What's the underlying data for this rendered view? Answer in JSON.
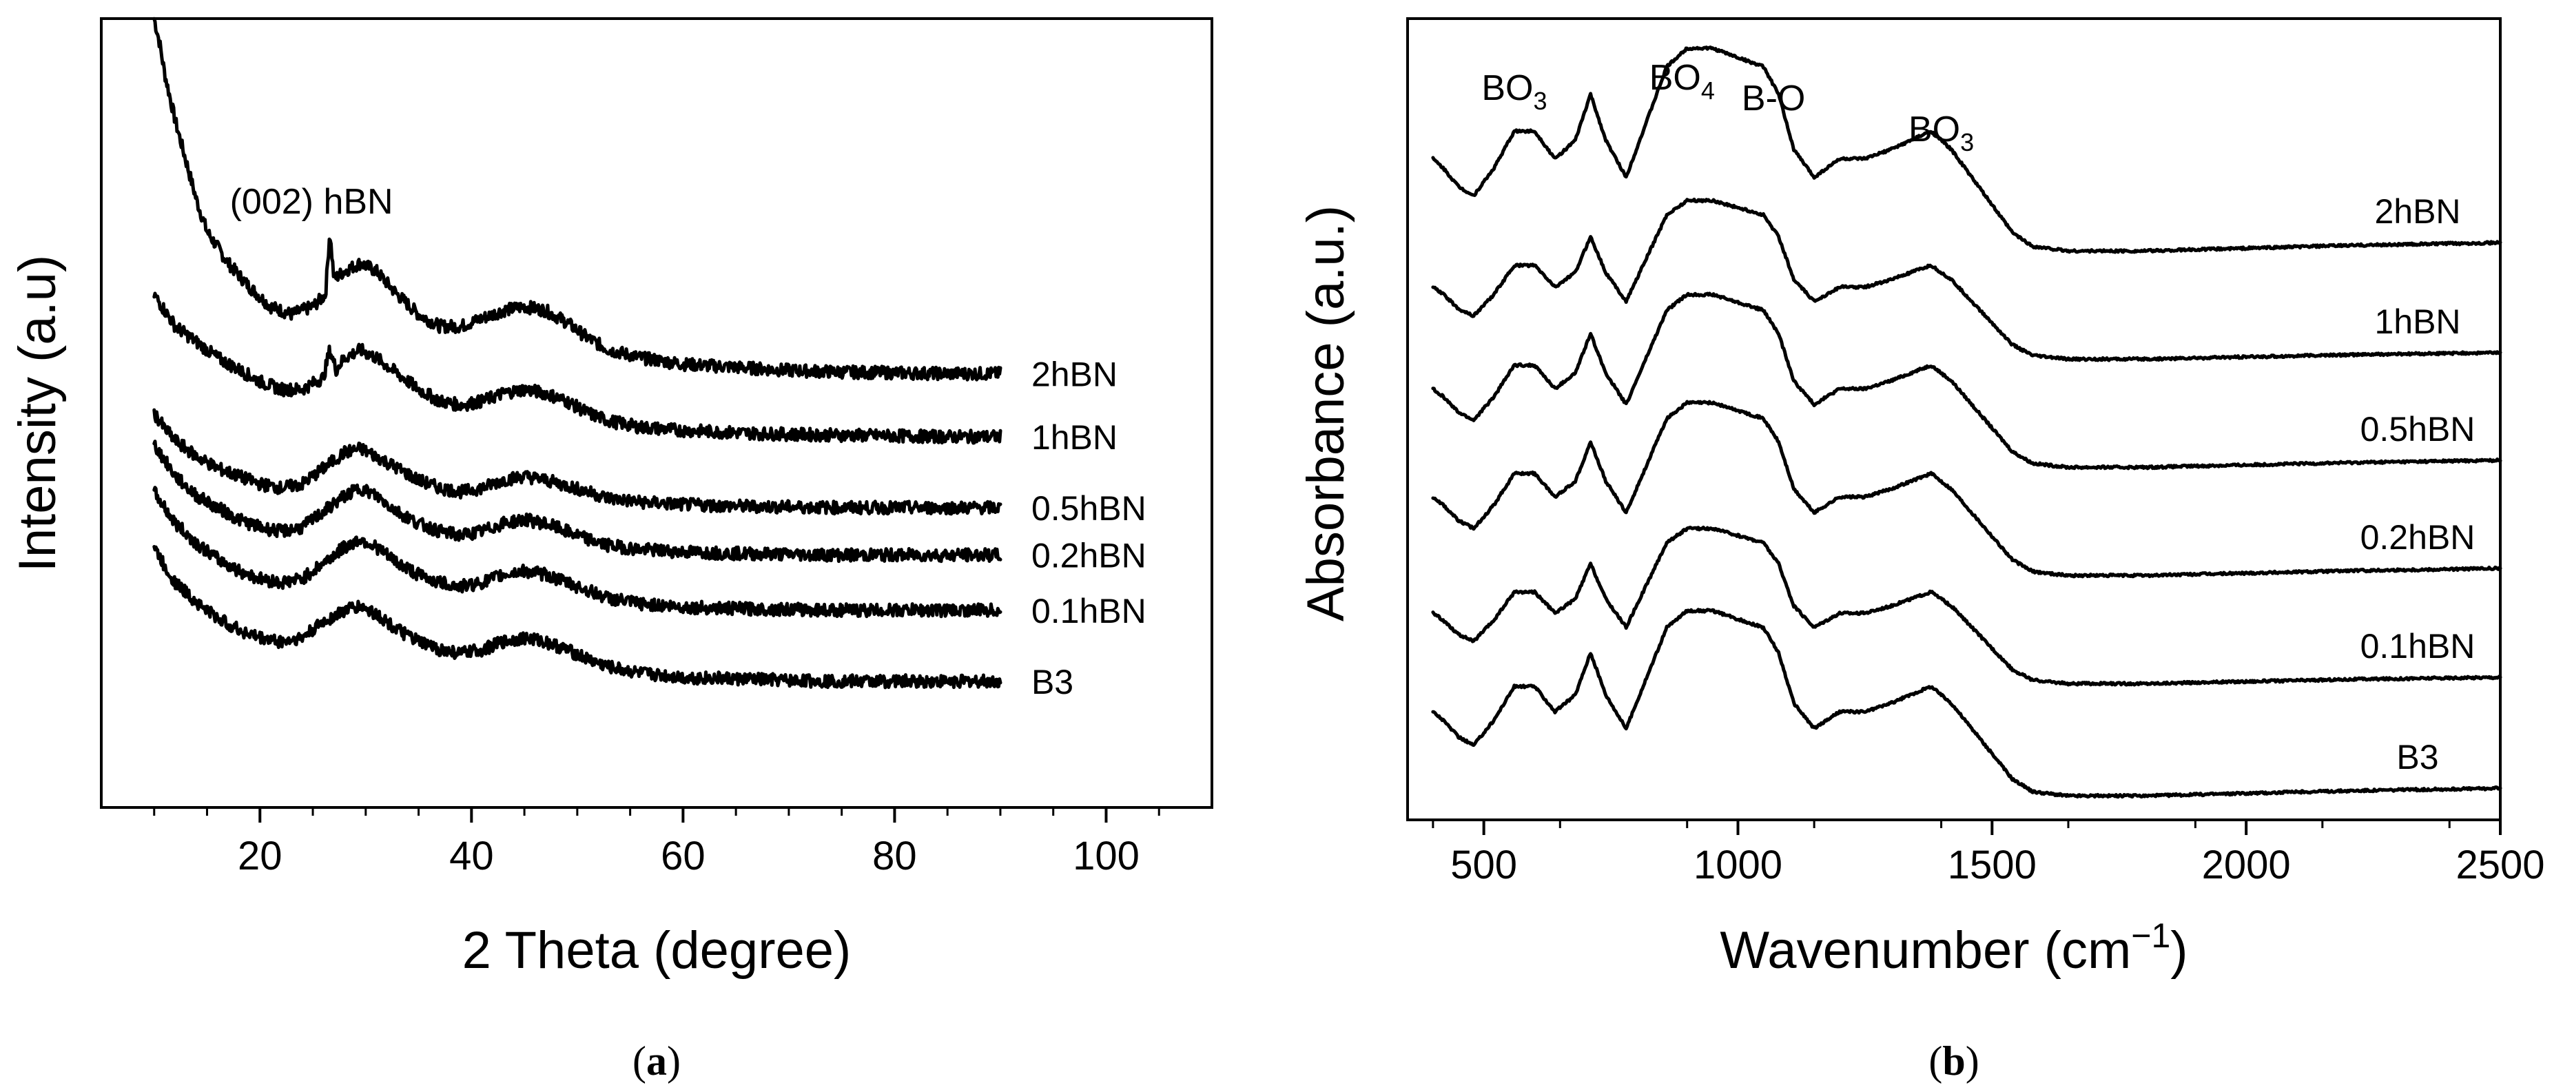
{
  "chart_data": [
    {
      "type": "line",
      "panel_label": "a",
      "xlabel": "2 Theta (degree)",
      "ylabel": "Intensity (a.u)",
      "xlim": [
        5,
        110
      ],
      "xticks": [
        20,
        40,
        60,
        80,
        100
      ],
      "xtick_labels": [
        "20",
        "40",
        "60",
        "80",
        "100"
      ],
      "ylim": [
        0,
        1
      ],
      "grid": false,
      "annotations": [
        {
          "text": "(002) hBN",
          "x": 26.6
        }
      ],
      "series": [
        {
          "name": "2hBN",
          "offset": 0.55,
          "amplitude_scale": 1.0,
          "sharp_peak": 0.1,
          "x": [
            10,
            10.5,
            11,
            12,
            13,
            14,
            15,
            17,
            19,
            21,
            23,
            25,
            26.2,
            26.6,
            27,
            28,
            29.5,
            31,
            33,
            35,
            37,
            39,
            41,
            43,
            45,
            47,
            49,
            51,
            53,
            56,
            60,
            65,
            70,
            75,
            80,
            85,
            90
          ],
          "y": [
            0.45,
            0.42,
            0.38,
            0.32,
            0.27,
            0.22,
            0.18,
            0.14,
            0.11,
            0.085,
            0.075,
            0.085,
            0.1,
            0.18,
            0.12,
            0.13,
            0.14,
            0.13,
            0.1,
            0.075,
            0.06,
            0.06,
            0.07,
            0.08,
            0.085,
            0.08,
            0.065,
            0.045,
            0.03,
            0.02,
            0.012,
            0.008,
            0.004,
            0.002,
            0.001,
            0.0,
            0.0
          ]
        },
        {
          "name": "1hBN",
          "offset": 0.47,
          "amplitude_scale": 0.85,
          "sharp_peak": 0.06,
          "x": [
            10,
            11,
            12,
            14,
            16,
            18,
            20,
            22,
            24,
            26,
            26.6,
            27.2,
            28,
            29.5,
            31,
            33,
            35,
            37,
            39,
            41,
            43,
            45,
            47,
            49,
            51,
            53,
            56,
            60,
            65,
            70,
            75,
            80,
            85,
            90
          ],
          "y": [
            0.18,
            0.16,
            0.14,
            0.12,
            0.1,
            0.085,
            0.07,
            0.06,
            0.06,
            0.075,
            0.11,
            0.085,
            0.1,
            0.11,
            0.1,
            0.08,
            0.06,
            0.045,
            0.04,
            0.045,
            0.055,
            0.06,
            0.055,
            0.045,
            0.03,
            0.02,
            0.012,
            0.008,
            0.005,
            0.003,
            0.002,
            0.001,
            0.0,
            0.0
          ]
        },
        {
          "name": "0.5hBN",
          "offset": 0.38,
          "amplitude_scale": 0.85,
          "sharp_peak": 0.0,
          "x": [
            10,
            11,
            12,
            14,
            16,
            18,
            20,
            22,
            24,
            26,
            28,
            29.5,
            31,
            33,
            35,
            37,
            39,
            41,
            43,
            45,
            47,
            49,
            51,
            53,
            56,
            60,
            65,
            70,
            75,
            80,
            85,
            90
          ],
          "y": [
            0.12,
            0.1,
            0.085,
            0.065,
            0.05,
            0.04,
            0.03,
            0.025,
            0.03,
            0.05,
            0.07,
            0.075,
            0.065,
            0.05,
            0.035,
            0.025,
            0.02,
            0.025,
            0.035,
            0.04,
            0.035,
            0.028,
            0.02,
            0.012,
            0.007,
            0.004,
            0.002,
            0.001,
            0.0,
            0.0,
            0.0,
            0.0
          ]
        },
        {
          "name": "0.2hBN",
          "offset": 0.32,
          "amplitude_scale": 0.85,
          "sharp_peak": 0.0,
          "x": [
            10,
            11,
            12,
            14,
            16,
            18,
            20,
            22,
            24,
            26,
            28,
            29.5,
            31,
            33,
            35,
            37,
            39,
            41,
            43,
            45,
            47,
            49,
            51,
            53,
            56,
            60,
            65,
            70,
            75,
            80,
            85,
            90
          ],
          "y": [
            0.14,
            0.12,
            0.1,
            0.075,
            0.06,
            0.045,
            0.035,
            0.03,
            0.035,
            0.055,
            0.075,
            0.085,
            0.075,
            0.055,
            0.04,
            0.03,
            0.025,
            0.03,
            0.04,
            0.045,
            0.04,
            0.03,
            0.02,
            0.012,
            0.007,
            0.004,
            0.002,
            0.001,
            0.0,
            0.0,
            0.0,
            0.0
          ]
        },
        {
          "name": "0.1hBN",
          "offset": 0.25,
          "amplitude_scale": 0.85,
          "sharp_peak": 0.0,
          "x": [
            10,
            11,
            12,
            14,
            16,
            18,
            20,
            22,
            24,
            26,
            28,
            29.5,
            31,
            33,
            35,
            37,
            39,
            41,
            43,
            45,
            47,
            49,
            51,
            53,
            56,
            60,
            65,
            70,
            75,
            80,
            85,
            90
          ],
          "y": [
            0.15,
            0.13,
            0.11,
            0.085,
            0.065,
            0.05,
            0.04,
            0.035,
            0.04,
            0.06,
            0.08,
            0.09,
            0.08,
            0.06,
            0.045,
            0.035,
            0.03,
            0.035,
            0.045,
            0.05,
            0.045,
            0.035,
            0.025,
            0.015,
            0.008,
            0.004,
            0.002,
            0.001,
            0.0,
            0.0,
            0.0,
            0.0
          ]
        },
        {
          "name": "B3",
          "offset": 0.16,
          "amplitude_scale": 0.85,
          "sharp_peak": 0.0,
          "x": [
            10,
            11,
            12,
            14,
            16,
            18,
            20,
            22,
            24,
            26,
            28,
            29.5,
            31,
            33,
            35,
            37,
            39,
            41,
            43,
            45,
            47,
            49,
            51,
            53,
            56,
            60,
            65,
            70,
            75,
            80,
            85,
            90
          ],
          "y": [
            0.17,
            0.145,
            0.125,
            0.1,
            0.08,
            0.065,
            0.055,
            0.05,
            0.055,
            0.075,
            0.09,
            0.095,
            0.085,
            0.065,
            0.05,
            0.04,
            0.035,
            0.04,
            0.05,
            0.055,
            0.05,
            0.04,
            0.028,
            0.018,
            0.01,
            0.005,
            0.003,
            0.001,
            0.0,
            0.0,
            0.0,
            0.0
          ]
        }
      ]
    },
    {
      "type": "line",
      "panel_label": "b",
      "xlabel": "Wavenumber (cm",
      "xlabel_sup": "−1",
      "xlabel_close": ")",
      "ylabel": "Absorbance (a.u.)",
      "xlim": [
        350,
        2500
      ],
      "xticks": [
        500,
        1000,
        1500,
        2000,
        2500
      ],
      "xtick_labels": [
        "500",
        "1000",
        "1500",
        "2000",
        "2500"
      ],
      "ylim": [
        0,
        1
      ],
      "grid": false,
      "annotations": [
        {
          "base": "BO",
          "sub": "3",
          "x": 560
        },
        {
          "base": "BO",
          "sub": "4",
          "x": 890
        },
        {
          "base": "B-O",
          "sub": "",
          "x": 1070
        },
        {
          "base": "BO",
          "sub": "3",
          "x": 1400
        }
      ],
      "series": [
        {
          "name": "2hBN",
          "offset": 0.71,
          "scale": 1.15
        },
        {
          "name": "1hBN",
          "offset": 0.575,
          "scale": 0.9
        },
        {
          "name": "0.5hBN",
          "offset": 0.44,
          "scale": 0.98
        },
        {
          "name": "0.2hBN",
          "offset": 0.305,
          "scale": 0.98
        },
        {
          "name": "0.1hBN",
          "offset": 0.17,
          "scale": 0.88
        },
        {
          "name": "B3",
          "offset": 0.03,
          "scale": 1.05
        }
      ],
      "shape": {
        "x": [
          400,
          420,
          450,
          480,
          520,
          560,
          600,
          640,
          680,
          710,
          740,
          780,
          820,
          860,
          900,
          950,
          1000,
          1050,
          1080,
          1110,
          1150,
          1200,
          1250,
          1300,
          1340,
          1380,
          1420,
          1460,
          1500,
          1540,
          1580,
          1650,
          1800,
          2000,
          2200,
          2400,
          2500
        ],
        "y": [
          0.1,
          0.09,
          0.07,
          0.06,
          0.09,
          0.13,
          0.13,
          0.1,
          0.12,
          0.17,
          0.12,
          0.08,
          0.14,
          0.2,
          0.22,
          0.22,
          0.21,
          0.2,
          0.17,
          0.11,
          0.08,
          0.1,
          0.1,
          0.11,
          0.12,
          0.13,
          0.11,
          0.08,
          0.05,
          0.02,
          0.005,
          0.0,
          0.0,
          0.003,
          0.006,
          0.008,
          0.009
        ]
      }
    }
  ]
}
